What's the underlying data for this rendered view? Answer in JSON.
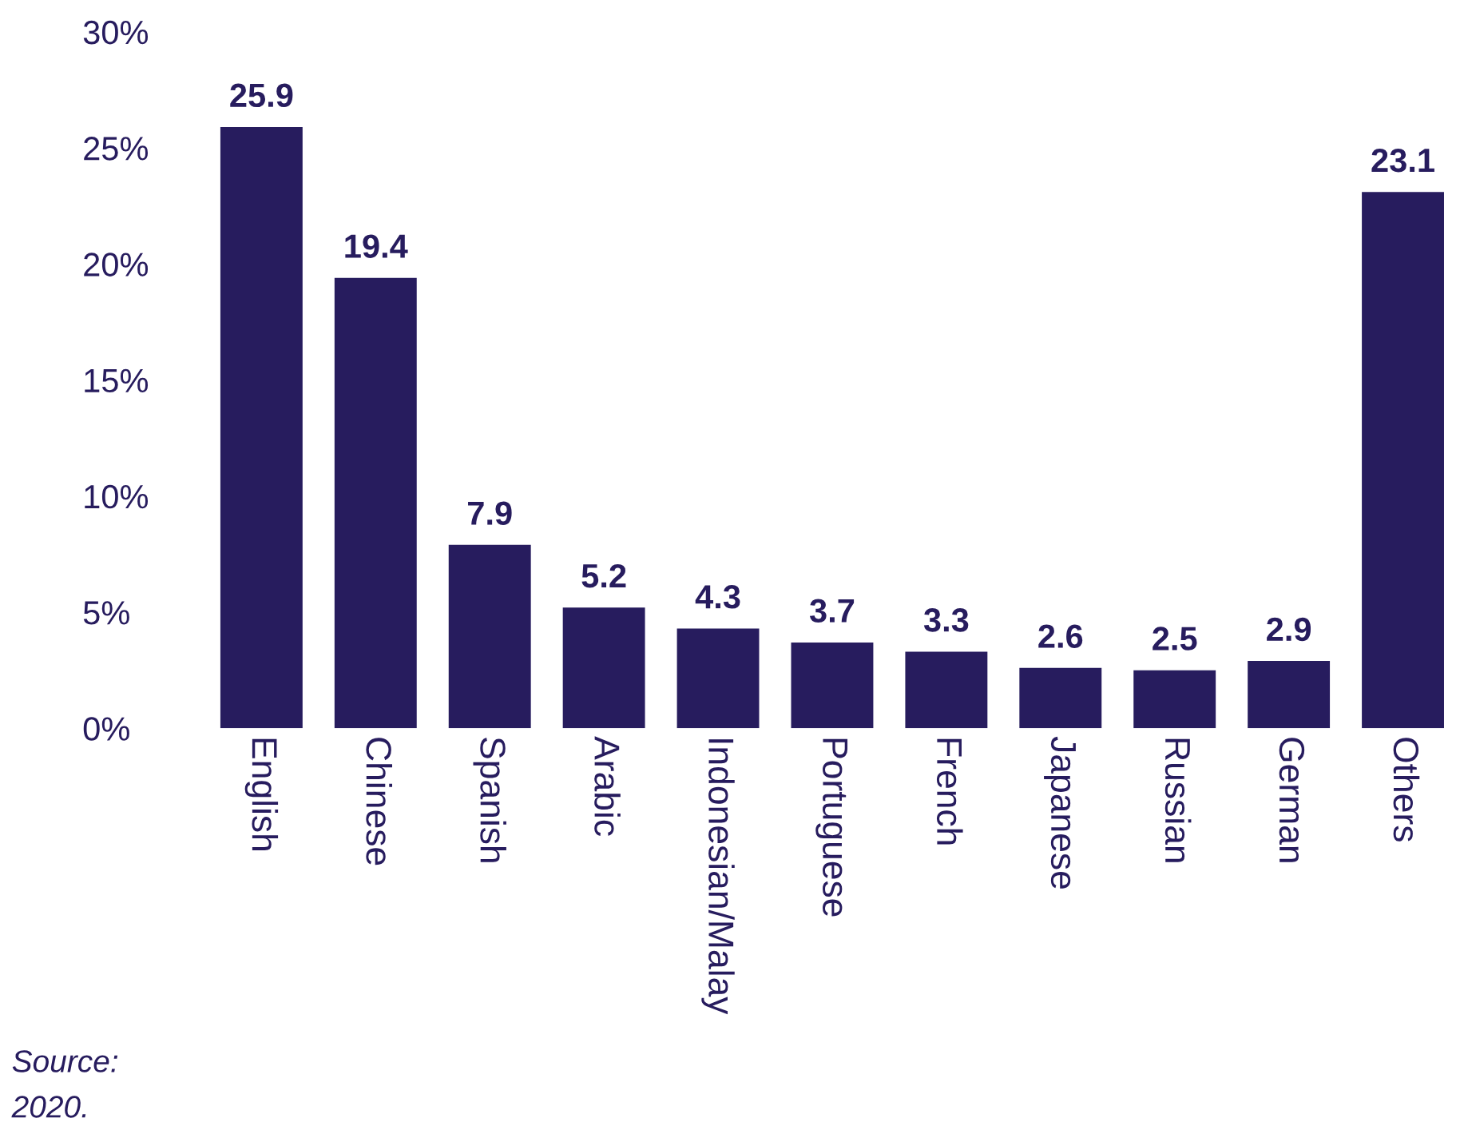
{
  "chart_data": {
    "type": "bar",
    "categories": [
      "English",
      "Chinese",
      "Spanish",
      "Arabic",
      "Indonesian/Malay",
      "Portuguese",
      "French",
      "Japanese",
      "Russian",
      "German",
      "Others"
    ],
    "values": [
      25.9,
      19.4,
      7.9,
      5.2,
      4.3,
      3.7,
      3.3,
      2.6,
      2.5,
      2.9,
      23.1
    ],
    "color": "#271c5e",
    "ylim": [
      0,
      30
    ],
    "yticks": [
      {
        "value": 0,
        "label": "0%"
      },
      {
        "value": 5,
        "label": "5%"
      },
      {
        "value": 10,
        "label": "10%"
      },
      {
        "value": 15,
        "label": "15%"
      },
      {
        "value": 20,
        "label": "20%"
      },
      {
        "value": 25,
        "label": "25%"
      },
      {
        "value": 30,
        "label": "30%"
      }
    ],
    "data_labels": true,
    "grid": false,
    "annotations": [
      "Source:",
      "2020."
    ]
  }
}
